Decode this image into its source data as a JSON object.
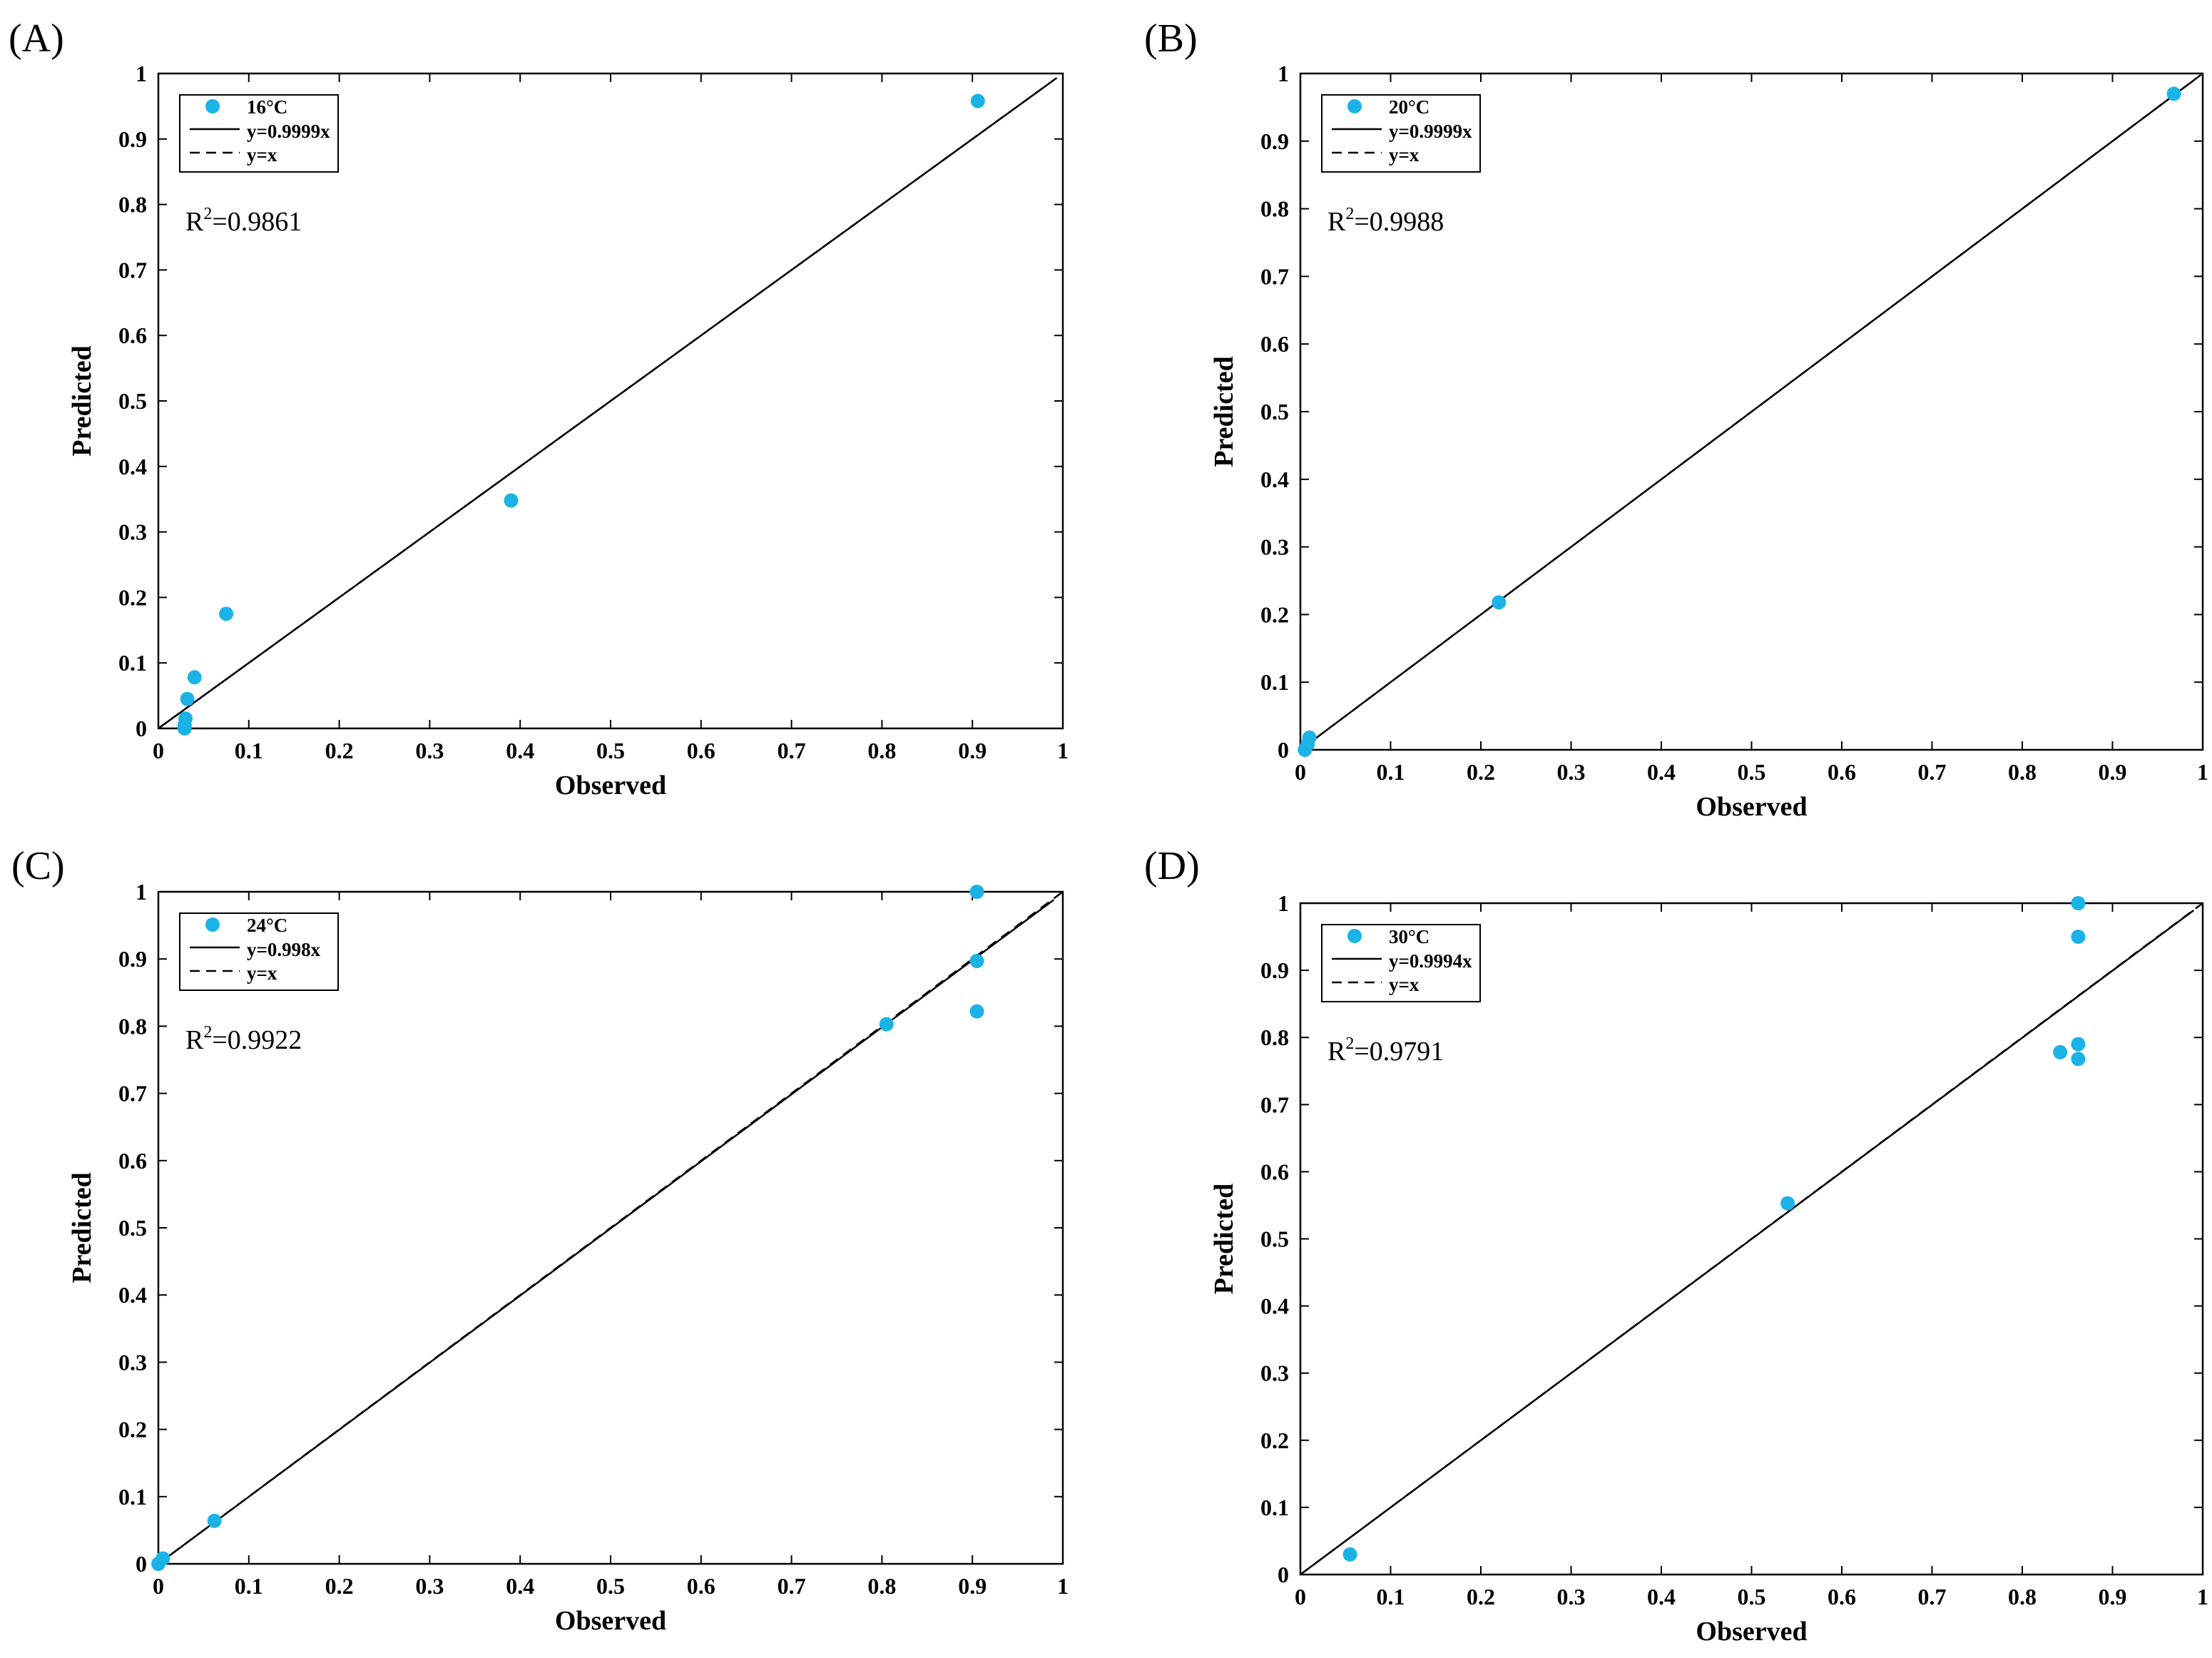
{
  "colors": {
    "point": "#1bb3e6",
    "line": "#000000",
    "frame": "#000000",
    "background": "#ffffff"
  },
  "chart_data": [
    {
      "type": "scatter",
      "panel": "(A)",
      "xlabel": "Observed",
      "ylabel": "Predicted",
      "xlim": [
        0,
        1
      ],
      "ylim": [
        0,
        1
      ],
      "ticks": [
        "0",
        "0.1",
        "0.2",
        "0.3",
        "0.4",
        "0.5",
        "0.6",
        "0.7",
        "0.8",
        "0.9",
        "1"
      ],
      "legend": {
        "placement": "top-left",
        "entries": [
          "16°C",
          "y=0.9999x",
          "y=x"
        ]
      },
      "r2": {
        "label": "R",
        "sup": "2",
        "value": "=0.9861"
      },
      "fit_slope": 0.9999,
      "series": [
        {
          "name": "16°C",
          "x": [
            0.029,
            0.029,
            0.03,
            0.032,
            0.04,
            0.075,
            0.39,
            0.906
          ],
          "y": [
            0.0,
            0.005,
            0.015,
            0.045,
            0.078,
            0.175,
            0.348,
            0.958
          ]
        }
      ]
    },
    {
      "type": "scatter",
      "panel": "(B)",
      "xlabel": "Observed",
      "ylabel": "Predicted",
      "xlim": [
        0,
        1
      ],
      "ylim": [
        0,
        1
      ],
      "ticks": [
        "0",
        "0.1",
        "0.2",
        "0.3",
        "0.4",
        "0.5",
        "0.6",
        "0.7",
        "0.8",
        "0.9",
        "1"
      ],
      "legend": {
        "placement": "top-left",
        "entries": [
          "20°C",
          "y=0.9999x",
          "y=x"
        ]
      },
      "r2": {
        "label": "R",
        "sup": "2",
        "value": "=0.9988"
      },
      "fit_slope": 0.9999,
      "series": [
        {
          "name": "20°C",
          "x": [
            0.005,
            0.008,
            0.01,
            0.22,
            0.968
          ],
          "y": [
            0.0,
            0.008,
            0.018,
            0.218,
            0.97
          ]
        }
      ]
    },
    {
      "type": "scatter",
      "panel": "(C)",
      "xlabel": "Observed",
      "ylabel": "Predicted",
      "xlim": [
        0,
        1
      ],
      "ylim": [
        0,
        1
      ],
      "ticks": [
        "0",
        "0.1",
        "0.2",
        "0.3",
        "0.4",
        "0.5",
        "0.6",
        "0.7",
        "0.8",
        "0.9",
        "1"
      ],
      "legend": {
        "placement": "top-left",
        "entries": [
          "24°C",
          "y=0.998x",
          "y=x"
        ]
      },
      "r2": {
        "label": "R",
        "sup": "2",
        "value": "=0.9922"
      },
      "fit_slope": 0.998,
      "series": [
        {
          "name": "24°C",
          "x": [
            0.0,
            0.005,
            0.062,
            0.805,
            0.905,
            0.905,
            0.905
          ],
          "y": [
            0.0,
            0.008,
            0.064,
            0.803,
            0.822,
            0.897,
            1.0
          ]
        }
      ]
    },
    {
      "type": "scatter",
      "panel": "(D)",
      "xlabel": "Observed",
      "ylabel": "Predicted",
      "xlim": [
        0,
        1
      ],
      "ylim": [
        0,
        1
      ],
      "ticks": [
        "0",
        "0.1",
        "0.2",
        "0.3",
        "0.4",
        "0.5",
        "0.6",
        "0.7",
        "0.8",
        "0.9",
        "1"
      ],
      "legend": {
        "placement": "top-left",
        "entries": [
          "30°C",
          "y=0.9994x",
          "y=x"
        ]
      },
      "r2": {
        "label": "R",
        "sup": "2",
        "value": "=0.9791"
      },
      "fit_slope": 0.9994,
      "series": [
        {
          "name": "30°C",
          "x": [
            0.055,
            0.54,
            0.842,
            0.862,
            0.862,
            0.862,
            0.862
          ],
          "y": [
            0.03,
            0.553,
            0.778,
            0.768,
            0.79,
            0.95,
            1.0
          ]
        }
      ]
    }
  ]
}
